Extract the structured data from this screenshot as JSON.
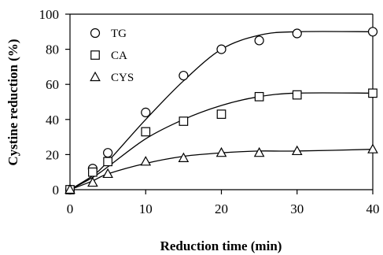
{
  "chart_data": {
    "type": "scatter",
    "xlabel": "Reduction time (min)",
    "ylabel": "Cystine reduction (%)",
    "xlim": [
      0,
      40
    ],
    "ylim": [
      0,
      100
    ],
    "xticks": [
      "0",
      "10",
      "20",
      "30",
      "40"
    ],
    "yticks": [
      "0",
      "20",
      "40",
      "60",
      "80",
      "100"
    ],
    "grid": false,
    "legend_position": "top-left",
    "series": [
      {
        "name": "TG",
        "marker": "circle",
        "x": [
          0,
          3,
          5,
          10,
          15,
          20,
          25,
          30,
          40
        ],
        "y": [
          0,
          12,
          21,
          44,
          65,
          80,
          85,
          89,
          90
        ],
        "fit_y": [
          0,
          8,
          16,
          40,
          62,
          80,
          88,
          90,
          90
        ]
      },
      {
        "name": "CA",
        "marker": "square",
        "x": [
          0,
          3,
          5,
          10,
          15,
          20,
          25,
          30,
          40
        ],
        "y": [
          0,
          10,
          16,
          33,
          39,
          43,
          53,
          54,
          55
        ],
        "fit_y": [
          0,
          7,
          13,
          29,
          40,
          48,
          53,
          55,
          55
        ]
      },
      {
        "name": "CYS",
        "marker": "triangle",
        "x": [
          0,
          3,
          5,
          10,
          15,
          20,
          25,
          30,
          40
        ],
        "y": [
          0,
          4,
          9,
          16,
          18,
          21,
          21,
          22,
          23
        ],
        "fit_y": [
          0,
          5,
          9,
          15,
          19,
          21,
          22,
          22,
          23
        ]
      }
    ]
  }
}
